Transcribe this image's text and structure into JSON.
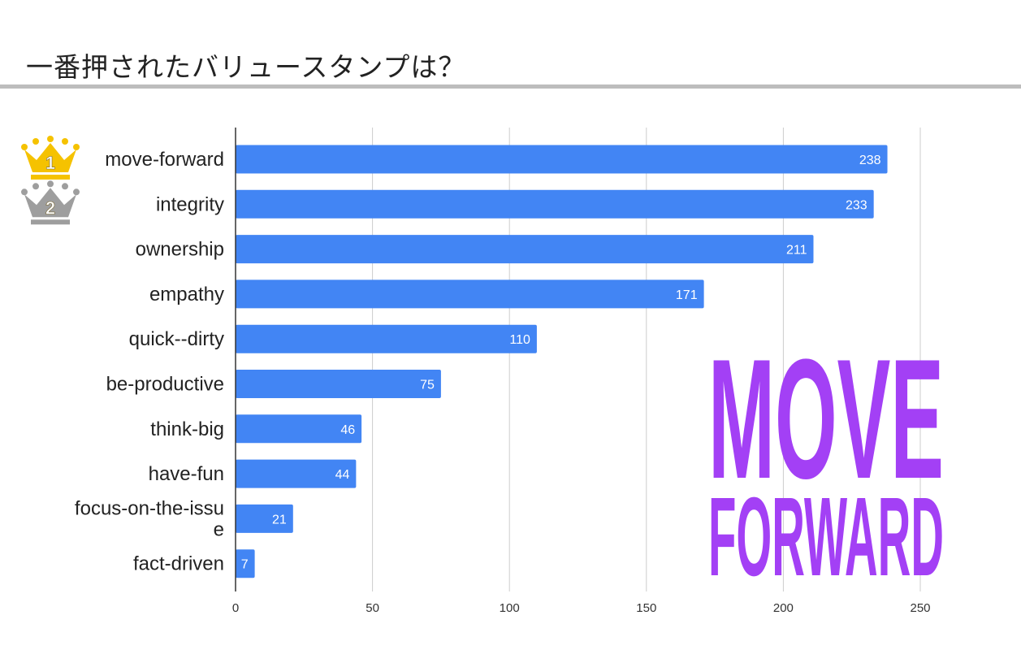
{
  "slide": {
    "title": "一番押されたバリュースタンプは？"
  },
  "rank_badges": [
    {
      "rank": "1",
      "icon": "gold-crown-icon",
      "color": "#f5c200"
    },
    {
      "rank": "2",
      "icon": "silver-crown-icon",
      "color": "#9e9e9e"
    }
  ],
  "logo": {
    "line1": "MOVE",
    "line2": "FORWARD",
    "color": "#a340f5"
  },
  "chart_data": {
    "type": "bar",
    "orientation": "horizontal",
    "categories": [
      [
        "move-forward"
      ],
      [
        "integrity"
      ],
      [
        "ownership"
      ],
      [
        "empathy"
      ],
      [
        "quick--dirty"
      ],
      [
        "be-productive"
      ],
      [
        "think-big"
      ],
      [
        "have-fun"
      ],
      [
        "focus-on-the-issu",
        "e"
      ],
      [
        "fact-driven"
      ]
    ],
    "values": [
      238,
      233,
      211,
      171,
      110,
      75,
      46,
      44,
      21,
      7
    ],
    "xlim": [
      0,
      250
    ],
    "xticks": [
      "0",
      "50",
      "100",
      "150",
      "200",
      "250"
    ],
    "grid": true,
    "bar_color": "#4285f4",
    "data_labels": true
  }
}
